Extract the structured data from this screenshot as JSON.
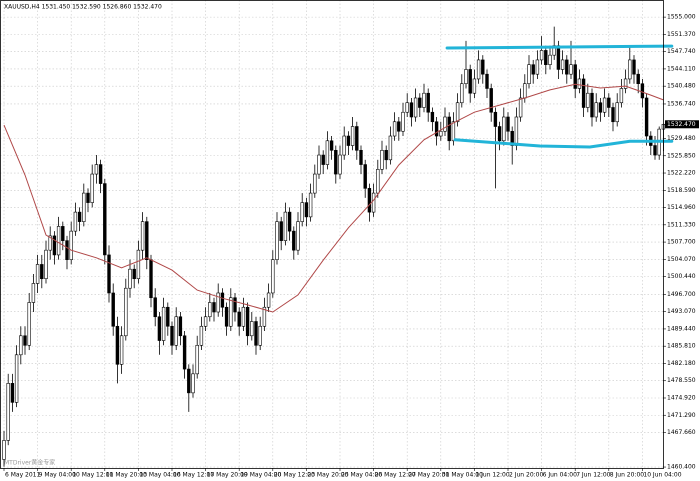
{
  "chart_data": {
    "type": "candlestick",
    "title": "XAUUSD,H4 1531.450 1532.590 1526.860 1532.470",
    "watermark": "MTDriver黄金专家",
    "last_price_label": "1532.470",
    "ylim": [
      1460.2,
      1558.6
    ],
    "yticks": [
      {
        "value": 1555,
        "label": "1555.000"
      },
      {
        "value": 1551.37,
        "label": "1551.370"
      },
      {
        "value": 1547.74,
        "label": "1547.740"
      },
      {
        "value": 1544.11,
        "label": "1544.110"
      },
      {
        "value": 1540.48,
        "label": "1540.480"
      },
      {
        "value": 1536.74,
        "label": "1536.740"
      },
      {
        "value": 1529.48,
        "label": "1529.480"
      },
      {
        "value": 1525.85,
        "label": "1525.850"
      },
      {
        "value": 1522.22,
        "label": "1522.220"
      },
      {
        "value": 1518.59,
        "label": "1518.590"
      },
      {
        "value": 1514.96,
        "label": "1514.960"
      },
      {
        "value": 1511.33,
        "label": "1511.330"
      },
      {
        "value": 1507.7,
        "label": "1507.700"
      },
      {
        "value": 1504.07,
        "label": "1504.070"
      },
      {
        "value": 1500.44,
        "label": "1500.440"
      },
      {
        "value": 1496.7,
        "label": "1496.700"
      },
      {
        "value": 1493.07,
        "label": "1493.070"
      },
      {
        "value": 1489.44,
        "label": "1489.440"
      },
      {
        "value": 1485.81,
        "label": "1485.810"
      },
      {
        "value": 1482.18,
        "label": "1482.180"
      },
      {
        "value": 1478.55,
        "label": "1478.550"
      },
      {
        "value": 1474.92,
        "label": "1474.920"
      },
      {
        "value": 1471.29,
        "label": "1471.290"
      },
      {
        "value": 1467.66,
        "label": "1467.660"
      },
      {
        "value": 1460.4,
        "label": "1460.400"
      }
    ],
    "grid": true,
    "bull_color": "#ffffff",
    "bear_color": "#000000",
    "outline_color": "#000000",
    "categories": [
      "6 May 2011",
      null,
      null,
      null,
      null,
      null,
      null,
      null,
      "9 May 04:00",
      null,
      null,
      null,
      null,
      null,
      null,
      null,
      "10 May 12:00",
      null,
      null,
      null,
      null,
      null,
      null,
      null,
      "11 May 20:00",
      null,
      null,
      null,
      null,
      null,
      null,
      null,
      "13 May 04:00",
      null,
      null,
      null,
      null,
      null,
      null,
      null,
      "16 May 12:00",
      null,
      null,
      null,
      null,
      null,
      null,
      null,
      "17 May 20:00",
      null,
      null,
      null,
      null,
      null,
      null,
      null,
      "19 May 04:00",
      null,
      null,
      null,
      null,
      null,
      null,
      null,
      "20 May 12:00",
      null,
      null,
      null,
      null,
      null,
      null,
      null,
      "23 May 20:00",
      null,
      null,
      null,
      null,
      null,
      null,
      null,
      "25 May 04:00",
      null,
      null,
      null,
      null,
      null,
      null,
      null,
      "26 May 12:00",
      null,
      null,
      null,
      null,
      null,
      null,
      null,
      "27 May 20:00",
      null,
      null,
      null,
      null,
      null,
      null,
      null,
      "31 May 04:00",
      null,
      null,
      null,
      null,
      null,
      null,
      null,
      "1 Jun 12:00",
      null,
      null,
      null,
      null,
      null,
      null,
      null,
      "2 Jun 20:00",
      null,
      null,
      null,
      null,
      null,
      null,
      null,
      "6 Jun 04:00",
      null,
      null,
      null,
      null,
      null,
      null,
      null,
      "7 Jun 12:00",
      null,
      null,
      null,
      null,
      null,
      null,
      null,
      "8 Jun 20:00",
      null,
      null,
      null,
      null,
      null,
      null,
      null,
      "10 Jun 04:00",
      null,
      null,
      null,
      null,
      null
    ],
    "ohlc": [
      [
        1462,
        1468,
        1460.5,
        1466
      ],
      [
        1466,
        1480,
        1465,
        1478
      ],
      [
        1478,
        1480,
        1472,
        1474
      ],
      [
        1474,
        1486,
        1473,
        1484
      ],
      [
        1484,
        1490,
        1482,
        1488
      ],
      [
        1488,
        1490,
        1484,
        1486
      ],
      [
        1486,
        1497,
        1485,
        1495
      ],
      [
        1495,
        1501,
        1493,
        1499
      ],
      [
        1499,
        1505,
        1497,
        1503
      ],
      [
        1503,
        1505,
        1498,
        1500
      ],
      [
        1500,
        1508,
        1499,
        1506
      ],
      [
        1506,
        1511,
        1504,
        1509
      ],
      [
        1509,
        1510,
        1503,
        1505
      ],
      [
        1505,
        1513,
        1504,
        1511
      ],
      [
        1511,
        1512,
        1506,
        1508
      ],
      [
        1508,
        1509,
        1502,
        1504
      ],
      [
        1504,
        1512,
        1503,
        1510
      ],
      [
        1510,
        1516,
        1509,
        1514
      ],
      [
        1514,
        1515,
        1510,
        1512
      ],
      [
        1512,
        1520,
        1511,
        1518
      ],
      [
        1518,
        1519,
        1514,
        1516
      ],
      [
        1516,
        1524,
        1515,
        1522
      ],
      [
        1522,
        1526,
        1520,
        1524
      ],
      [
        1524,
        1525,
        1518,
        1520
      ],
      [
        1520,
        1521,
        1503,
        1505
      ],
      [
        1505,
        1507,
        1495,
        1497
      ],
      [
        1497,
        1499,
        1488,
        1490
      ],
      [
        1490,
        1492,
        1478,
        1482
      ],
      [
        1482,
        1490,
        1480,
        1488
      ],
      [
        1488,
        1500,
        1487,
        1498
      ],
      [
        1498,
        1504,
        1496,
        1502
      ],
      [
        1502,
        1503,
        1498,
        1500
      ],
      [
        1500,
        1508,
        1499,
        1506
      ],
      [
        1506,
        1514,
        1504,
        1512
      ],
      [
        1512,
        1513,
        1502,
        1504
      ],
      [
        1504,
        1505,
        1494,
        1496
      ],
      [
        1496,
        1498,
        1490,
        1492
      ],
      [
        1492,
        1493,
        1484,
        1487
      ],
      [
        1487,
        1496,
        1486,
        1494
      ],
      [
        1494,
        1495,
        1488,
        1490
      ],
      [
        1490,
        1491,
        1484,
        1486
      ],
      [
        1486,
        1494,
        1485,
        1492
      ],
      [
        1492,
        1493,
        1486,
        1488
      ],
      [
        1488,
        1489,
        1479,
        1481
      ],
      [
        1481,
        1482,
        1472,
        1476
      ],
      [
        1476,
        1482,
        1475,
        1480
      ],
      [
        1480,
        1488,
        1479,
        1486
      ],
      [
        1486,
        1492,
        1485,
        1490
      ],
      [
        1490,
        1494,
        1489,
        1492
      ],
      [
        1492,
        1497,
        1491,
        1495
      ],
      [
        1495,
        1496,
        1491,
        1493
      ],
      [
        1493,
        1499,
        1492,
        1497
      ],
      [
        1497,
        1498,
        1492,
        1494
      ],
      [
        1494,
        1495,
        1488,
        1490
      ],
      [
        1490,
        1498,
        1489,
        1496
      ],
      [
        1496,
        1497,
        1491,
        1493
      ],
      [
        1493,
        1494,
        1488,
        1490
      ],
      [
        1490,
        1496,
        1489,
        1494
      ],
      [
        1494,
        1495,
        1486,
        1488
      ],
      [
        1488,
        1493,
        1487,
        1491
      ],
      [
        1491,
        1492,
        1484,
        1486
      ],
      [
        1486,
        1492,
        1485,
        1490
      ],
      [
        1490,
        1496,
        1489,
        1494
      ],
      [
        1494,
        1499,
        1493,
        1497
      ],
      [
        1497,
        1506,
        1496,
        1504
      ],
      [
        1504,
        1514,
        1503,
        1512
      ],
      [
        1512,
        1513,
        1506,
        1508
      ],
      [
        1508,
        1516,
        1507,
        1514
      ],
      [
        1514,
        1515,
        1508,
        1510
      ],
      [
        1510,
        1511,
        1504,
        1506
      ],
      [
        1506,
        1514,
        1505,
        1512
      ],
      [
        1512,
        1518,
        1511,
        1516
      ],
      [
        1516,
        1517,
        1511,
        1513
      ],
      [
        1513,
        1520,
        1512,
        1518
      ],
      [
        1518,
        1524,
        1517,
        1522
      ],
      [
        1522,
        1528,
        1521,
        1526
      ],
      [
        1526,
        1527,
        1522,
        1524
      ],
      [
        1524,
        1531,
        1523,
        1529
      ],
      [
        1529,
        1530,
        1525,
        1527
      ],
      [
        1527,
        1528,
        1520,
        1522
      ],
      [
        1522,
        1528,
        1521,
        1526
      ],
      [
        1526,
        1532,
        1525,
        1530
      ],
      [
        1530,
        1531,
        1526,
        1528
      ],
      [
        1528,
        1534,
        1527,
        1532
      ],
      [
        1532,
        1533,
        1525,
        1527
      ],
      [
        1527,
        1528,
        1522,
        1524
      ],
      [
        1524,
        1525,
        1517,
        1519
      ],
      [
        1519,
        1520,
        1512,
        1514
      ],
      [
        1514,
        1520,
        1513,
        1518
      ],
      [
        1518,
        1525,
        1517,
        1523
      ],
      [
        1523,
        1529,
        1522,
        1527
      ],
      [
        1527,
        1528,
        1523,
        1525
      ],
      [
        1525,
        1532,
        1524,
        1530
      ],
      [
        1530,
        1535,
        1529,
        1533
      ],
      [
        1533,
        1534,
        1529,
        1531
      ],
      [
        1531,
        1537,
        1530,
        1535
      ],
      [
        1535,
        1539,
        1534,
        1537
      ],
      [
        1537,
        1538,
        1532,
        1534
      ],
      [
        1534,
        1540,
        1533,
        1538
      ],
      [
        1538,
        1539,
        1534,
        1536
      ],
      [
        1536,
        1541,
        1535,
        1539
      ],
      [
        1539,
        1540,
        1533,
        1535
      ],
      [
        1535,
        1536,
        1531,
        1533
      ],
      [
        1533,
        1534,
        1528,
        1530
      ],
      [
        1530,
        1533,
        1529,
        1531
      ],
      [
        1531,
        1536,
        1530,
        1534
      ],
      [
        1534,
        1535,
        1527,
        1529
      ],
      [
        1529,
        1535,
        1528,
        1533
      ],
      [
        1533,
        1539,
        1532,
        1537
      ],
      [
        1537,
        1543,
        1536,
        1541
      ],
      [
        1541,
        1550,
        1540,
        1544
      ],
      [
        1544,
        1545,
        1537,
        1539
      ],
      [
        1539,
        1544,
        1538,
        1542
      ],
      [
        1542,
        1548,
        1541,
        1546
      ],
      [
        1546,
        1547,
        1541,
        1543
      ],
      [
        1543,
        1544,
        1538,
        1540
      ],
      [
        1540,
        1541,
        1533,
        1535
      ],
      [
        1535,
        1536,
        1519,
        1532
      ],
      [
        1532,
        1533,
        1527,
        1529
      ],
      [
        1529,
        1536,
        1528,
        1534
      ],
      [
        1534,
        1535,
        1529,
        1531
      ],
      [
        1531,
        1532,
        1524,
        1528
      ],
      [
        1528,
        1536,
        1527,
        1534
      ],
      [
        1534,
        1540,
        1533,
        1538
      ],
      [
        1538,
        1543,
        1537,
        1541
      ],
      [
        1541,
        1547,
        1540,
        1545
      ],
      [
        1545,
        1546,
        1541,
        1543
      ],
      [
        1543,
        1548,
        1542,
        1546
      ],
      [
        1546,
        1551,
        1545,
        1548
      ],
      [
        1548,
        1549,
        1543,
        1545
      ],
      [
        1545,
        1549,
        1544,
        1547
      ],
      [
        1547,
        1553,
        1546,
        1549
      ],
      [
        1549,
        1550,
        1542,
        1544
      ],
      [
        1544,
        1548,
        1543,
        1546
      ],
      [
        1546,
        1547,
        1541,
        1543
      ],
      [
        1543,
        1550,
        1542,
        1545
      ],
      [
        1545,
        1546,
        1538,
        1540
      ],
      [
        1540,
        1544,
        1539,
        1542
      ],
      [
        1542,
        1543,
        1534,
        1536
      ],
      [
        1536,
        1541,
        1535,
        1539
      ],
      [
        1539,
        1540,
        1532,
        1534
      ],
      [
        1534,
        1539,
        1533,
        1537
      ],
      [
        1537,
        1538,
        1533,
        1535
      ],
      [
        1535,
        1540,
        1534,
        1538
      ],
      [
        1538,
        1539,
        1534,
        1536
      ],
      [
        1536,
        1537,
        1531,
        1533
      ],
      [
        1533,
        1539,
        1532,
        1537
      ],
      [
        1537,
        1542,
        1536,
        1540
      ],
      [
        1540,
        1544,
        1539,
        1542
      ],
      [
        1542,
        1549,
        1541,
        1546
      ],
      [
        1546,
        1547,
        1541,
        1543
      ],
      [
        1543,
        1544,
        1539,
        1541
      ],
      [
        1541,
        1542,
        1536,
        1538
      ],
      [
        1538,
        1539,
        1528,
        1530
      ],
      [
        1530,
        1531,
        1526,
        1528
      ],
      [
        1528,
        1530,
        1525,
        1526
      ],
      [
        1526,
        1532,
        1525,
        1531.45
      ],
      [
        1531.45,
        1532.59,
        1526.86,
        1532.47
      ]
    ],
    "ma": {
      "color": "#b04848",
      "x": [
        0,
        5,
        10,
        16,
        22,
        28,
        34,
        40,
        46,
        52,
        58,
        64,
        70,
        76,
        82,
        88,
        94,
        100,
        106,
        112,
        118,
        124,
        130,
        136,
        142,
        148,
        154,
        157
      ],
      "values": [
        1532.3,
        1521.8,
        1509.2,
        1506.0,
        1504.4,
        1502.3,
        1504.4,
        1501.8,
        1497.6,
        1495.9,
        1494.5,
        1493.0,
        1496.6,
        1503.9,
        1510.7,
        1516.5,
        1523.9,
        1529.2,
        1532.3,
        1535.0,
        1536.5,
        1538.0,
        1539.7,
        1540.9,
        1540.1,
        1540.5,
        1538.6,
        1537.6
      ]
    },
    "trendlines": [
      {
        "color": "#22b4d8",
        "x": [
          105.5,
          159
        ],
        "values": [
          1548.5,
          1548.9
        ]
      },
      {
        "color": "#22b4d8",
        "x": [
          107.4,
          127.6,
          139.5,
          149,
          159
        ],
        "values": [
          1529.2,
          1527.9,
          1527.7,
          1528.9,
          1528.9
        ]
      }
    ]
  }
}
